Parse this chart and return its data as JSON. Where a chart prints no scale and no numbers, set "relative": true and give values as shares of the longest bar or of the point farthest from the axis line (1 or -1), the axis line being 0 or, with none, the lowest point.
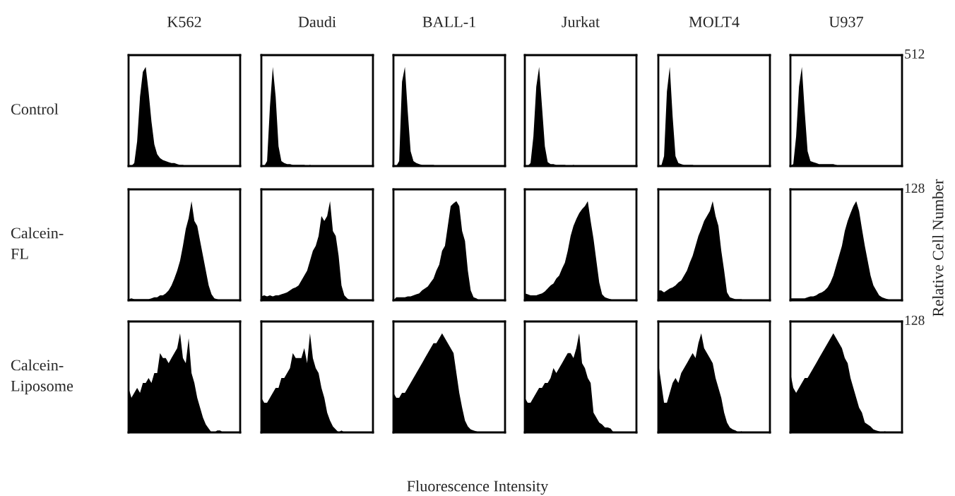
{
  "chart_data": [
    {
      "type": "area",
      "title": "K562",
      "ylabel": "Control",
      "relative": true,
      "color": "#000000",
      "categories": [
        null,
        null,
        null,
        null,
        null,
        null,
        null,
        null,
        null,
        null,
        null,
        null,
        null,
        null,
        null,
        null,
        null,
        null,
        null,
        null,
        null,
        null,
        null,
        null,
        null,
        null,
        null,
        null,
        null,
        null,
        null,
        null,
        null,
        null,
        null,
        null,
        null,
        null,
        null,
        null
      ],
      "values": [
        0,
        0,
        0.03,
        0.25,
        0.7,
        0.95,
        1.0,
        0.75,
        0.45,
        0.22,
        0.12,
        0.08,
        0.06,
        0.05,
        0.04,
        0.03,
        0.03,
        0.02,
        0.01,
        0.01,
        0,
        0,
        0,
        0,
        0,
        0,
        0,
        0,
        0,
        0,
        0,
        0,
        0,
        0,
        0,
        0,
        0,
        0,
        0,
        0
      ]
    },
    {
      "type": "area",
      "title": "Daudi",
      "relative": true,
      "color": "#000000",
      "categories": [
        null,
        null,
        null,
        null,
        null,
        null,
        null,
        null,
        null,
        null,
        null,
        null,
        null,
        null,
        null,
        null,
        null,
        null,
        null,
        null,
        null,
        null,
        null,
        null,
        null,
        null,
        null,
        null,
        null,
        null,
        null,
        null,
        null,
        null,
        null,
        null,
        null,
        null,
        null,
        null
      ],
      "values": [
        0,
        0,
        0.05,
        0.6,
        1.0,
        0.7,
        0.2,
        0.05,
        0.03,
        0.02,
        0.02,
        0.01,
        0.01,
        0.01,
        0.01,
        0.01,
        0,
        0.01,
        0,
        0,
        0,
        0,
        0,
        0,
        0,
        0,
        0,
        0,
        0,
        0,
        0,
        0,
        0,
        0,
        0,
        0,
        0,
        0,
        0,
        0
      ]
    },
    {
      "type": "area",
      "title": "BALL-1",
      "relative": true,
      "color": "#000000",
      "categories": [
        null,
        null,
        null,
        null,
        null,
        null,
        null,
        null,
        null,
        null,
        null,
        null,
        null,
        null,
        null,
        null,
        null,
        null,
        null,
        null,
        null,
        null,
        null,
        null,
        null,
        null,
        null,
        null,
        null,
        null,
        null,
        null,
        null,
        null,
        null,
        null,
        null,
        null,
        null,
        null
      ],
      "values": [
        0,
        0,
        0.05,
        0.85,
        1.0,
        0.55,
        0.15,
        0.05,
        0.03,
        0.02,
        0.01,
        0.01,
        0.01,
        0.01,
        0.01,
        0,
        0,
        0,
        0,
        0,
        0,
        0,
        0,
        0,
        0,
        0,
        0,
        0,
        0,
        0,
        0,
        0,
        0,
        0,
        0,
        0,
        0,
        0,
        0,
        0
      ]
    },
    {
      "type": "area",
      "title": "Jurkat",
      "relative": true,
      "color": "#000000",
      "categories": [
        null,
        null,
        null,
        null,
        null,
        null,
        null,
        null,
        null,
        null,
        null,
        null,
        null,
        null,
        null,
        null,
        null,
        null,
        null,
        null,
        null,
        null,
        null,
        null,
        null,
        null,
        null,
        null,
        null,
        null,
        null,
        null,
        null,
        null,
        null,
        null,
        null,
        null,
        null,
        null
      ],
      "values": [
        0,
        0,
        0.03,
        0.3,
        0.8,
        1.0,
        0.6,
        0.2,
        0.04,
        0.02,
        0.02,
        0.01,
        0.01,
        0.01,
        0.01,
        0,
        0,
        0.01,
        0,
        0,
        0,
        0,
        0,
        0,
        0,
        0,
        0,
        0,
        0,
        0,
        0,
        0,
        0,
        0,
        0,
        0,
        0,
        0,
        0,
        0
      ]
    },
    {
      "type": "area",
      "title": "MOLT4",
      "relative": true,
      "color": "#000000",
      "categories": [
        null,
        null,
        null,
        null,
        null,
        null,
        null,
        null,
        null,
        null,
        null,
        null,
        null,
        null,
        null,
        null,
        null,
        null,
        null,
        null,
        null,
        null,
        null,
        null,
        null,
        null,
        null,
        null,
        null,
        null,
        null,
        null,
        null,
        null,
        null,
        null,
        null,
        null,
        null,
        null
      ],
      "values": [
        0,
        0,
        0.1,
        0.75,
        1.0,
        0.5,
        0.1,
        0.03,
        0.02,
        0.01,
        0.01,
        0.01,
        0.01,
        0,
        0,
        0,
        0,
        0,
        0,
        0,
        0,
        0,
        0,
        0,
        0,
        0,
        0,
        0,
        0,
        0,
        0,
        0,
        0,
        0,
        0,
        0,
        0,
        0,
        0,
        0
      ]
    },
    {
      "type": "area",
      "title": "U937",
      "annotations": [
        "512"
      ],
      "relative": true,
      "color": "#000000",
      "categories": [
        null,
        null,
        null,
        null,
        null,
        null,
        null,
        null,
        null,
        null,
        null,
        null,
        null,
        null,
        null,
        null,
        null,
        null,
        null,
        null,
        null,
        null,
        null,
        null,
        null,
        null,
        null,
        null,
        null,
        null,
        null,
        null,
        null,
        null,
        null,
        null,
        null,
        null,
        null,
        null
      ],
      "values": [
        0,
        0.02,
        0.3,
        0.8,
        1.0,
        0.55,
        0.15,
        0.05,
        0.04,
        0.03,
        0.02,
        0.02,
        0.02,
        0.02,
        0.02,
        0.02,
        0.01,
        0,
        0,
        0,
        0,
        0,
        0,
        0,
        0,
        0,
        0,
        0,
        0,
        0,
        0,
        0,
        0,
        0,
        0,
        0,
        0,
        0,
        0,
        0
      ]
    },
    {
      "type": "area",
      "ylabel": "Calcein-\nFL",
      "relative": true,
      "color": "#000000",
      "categories": [
        null,
        null,
        null,
        null,
        null,
        null,
        null,
        null,
        null,
        null,
        null,
        null,
        null,
        null,
        null,
        null,
        null,
        null,
        null,
        null,
        null,
        null,
        null,
        null,
        null,
        null,
        null,
        null,
        null,
        null,
        null,
        null,
        null,
        null,
        null,
        null,
        null,
        null,
        null,
        null
      ],
      "values": [
        0.01,
        0.02,
        0.01,
        0.01,
        0.01,
        0.01,
        0.01,
        0.01,
        0.02,
        0.03,
        0.03,
        0.05,
        0.05,
        0.07,
        0.1,
        0.15,
        0.22,
        0.3,
        0.4,
        0.55,
        0.72,
        0.83,
        1.0,
        0.8,
        0.75,
        0.6,
        0.45,
        0.3,
        0.15,
        0.06,
        0.02,
        0.01,
        0,
        0,
        0,
        0,
        0,
        0,
        0,
        0
      ]
    },
    {
      "type": "area",
      "relative": true,
      "color": "#000000",
      "categories": [
        null,
        null,
        null,
        null,
        null,
        null,
        null,
        null,
        null,
        null,
        null,
        null,
        null,
        null,
        null,
        null,
        null,
        null,
        null,
        null,
        null,
        null,
        null,
        null,
        null,
        null,
        null,
        null,
        null,
        null,
        null,
        null,
        null,
        null,
        null,
        null,
        null,
        null,
        null,
        null
      ],
      "values": [
        0.04,
        0.05,
        0.04,
        0.05,
        0.04,
        0.05,
        0.05,
        0.06,
        0.07,
        0.08,
        0.1,
        0.12,
        0.13,
        0.15,
        0.2,
        0.25,
        0.3,
        0.4,
        0.5,
        0.55,
        0.65,
        0.85,
        0.8,
        0.85,
        1.0,
        0.7,
        0.65,
        0.45,
        0.15,
        0.05,
        0.02,
        0,
        0,
        0,
        0,
        0,
        0,
        0,
        0,
        0
      ]
    },
    {
      "type": "area",
      "relative": true,
      "color": "#000000",
      "categories": [
        null,
        null,
        null,
        null,
        null,
        null,
        null,
        null,
        null,
        null,
        null,
        null,
        null,
        null,
        null,
        null,
        null,
        null,
        null,
        null,
        null,
        null,
        null,
        null,
        null,
        null,
        null,
        null,
        null,
        null,
        null,
        null,
        null,
        null,
        null,
        null,
        null,
        null,
        null,
        null
      ],
      "values": [
        0,
        0.03,
        0.03,
        0.03,
        0.03,
        0.04,
        0.04,
        0.05,
        0.06,
        0.07,
        0.1,
        0.12,
        0.14,
        0.18,
        0.22,
        0.3,
        0.36,
        0.5,
        0.55,
        0.75,
        0.95,
        0.98,
        1.0,
        0.95,
        0.7,
        0.6,
        0.3,
        0.1,
        0.03,
        0.02,
        0,
        0,
        0,
        0,
        0,
        0,
        0,
        0,
        0,
        0
      ]
    },
    {
      "type": "area",
      "relative": true,
      "color": "#000000",
      "categories": [
        null,
        null,
        null,
        null,
        null,
        null,
        null,
        null,
        null,
        null,
        null,
        null,
        null,
        null,
        null,
        null,
        null,
        null,
        null,
        null,
        null,
        null,
        null,
        null,
        null,
        null,
        null,
        null,
        null,
        null,
        null,
        null,
        null,
        null,
        null,
        null,
        null,
        null,
        null,
        null
      ],
      "values": [
        0.07,
        0.06,
        0.05,
        0.05,
        0.05,
        0.06,
        0.07,
        0.09,
        0.12,
        0.15,
        0.17,
        0.22,
        0.25,
        0.32,
        0.38,
        0.5,
        0.65,
        0.75,
        0.82,
        0.88,
        0.92,
        0.95,
        1.0,
        0.8,
        0.62,
        0.4,
        0.18,
        0.06,
        0.03,
        0.02,
        0.01,
        0,
        0,
        0,
        0,
        0,
        0,
        0,
        0,
        0
      ]
    },
    {
      "type": "area",
      "relative": true,
      "color": "#000000",
      "categories": [
        null,
        null,
        null,
        null,
        null,
        null,
        null,
        null,
        null,
        null,
        null,
        null,
        null,
        null,
        null,
        null,
        null,
        null,
        null,
        null,
        null,
        null,
        null,
        null,
        null,
        null,
        null,
        null,
        null,
        null,
        null,
        null,
        null,
        null,
        null,
        null,
        null,
        null,
        null,
        null
      ],
      "values": [
        0.1,
        0.1,
        0.08,
        0.1,
        0.12,
        0.13,
        0.15,
        0.18,
        0.2,
        0.25,
        0.3,
        0.38,
        0.45,
        0.55,
        0.65,
        0.72,
        0.8,
        0.85,
        0.9,
        1.0,
        0.85,
        0.75,
        0.5,
        0.3,
        0.08,
        0.03,
        0.02,
        0.01,
        0.01,
        0.01,
        0,
        0,
        0,
        0,
        0,
        0,
        0,
        0,
        0,
        0
      ]
    },
    {
      "type": "area",
      "annotations": [
        "128"
      ],
      "y2label": "Relative Cell Number",
      "relative": true,
      "color": "#000000",
      "categories": [
        null,
        null,
        null,
        null,
        null,
        null,
        null,
        null,
        null,
        null,
        null,
        null,
        null,
        null,
        null,
        null,
        null,
        null,
        null,
        null,
        null,
        null,
        null,
        null,
        null,
        null,
        null,
        null,
        null,
        null,
        null,
        null,
        null,
        null,
        null,
        null,
        null,
        null,
        null,
        null
      ],
      "values": [
        0.02,
        0.02,
        0.02,
        0.02,
        0.02,
        0.02,
        0.03,
        0.04,
        0.04,
        0.05,
        0.07,
        0.08,
        0.1,
        0.13,
        0.18,
        0.25,
        0.35,
        0.45,
        0.55,
        0.7,
        0.8,
        0.88,
        0.95,
        1.0,
        0.9,
        0.72,
        0.55,
        0.4,
        0.25,
        0.15,
        0.1,
        0.05,
        0.03,
        0.02,
        0.01,
        0,
        0,
        0,
        0,
        0
      ]
    },
    {
      "type": "area",
      "ylabel": "Calcein-\nLiposome",
      "relative": true,
      "color": "#000000",
      "categories": [
        null,
        null,
        null,
        null,
        null,
        null,
        null,
        null,
        null,
        null,
        null,
        null,
        null,
        null,
        null,
        null,
        null,
        null,
        null,
        null,
        null,
        null,
        null,
        null,
        null,
        null,
        null,
        null,
        null,
        null,
        null,
        null,
        null,
        null,
        null,
        null,
        null,
        null,
        null,
        null
      ],
      "values": [
        0.45,
        0.35,
        0.4,
        0.45,
        0.4,
        0.5,
        0.5,
        0.55,
        0.5,
        0.6,
        0.6,
        0.8,
        0.75,
        0.75,
        0.7,
        0.75,
        0.8,
        0.85,
        1.0,
        0.75,
        0.7,
        0.95,
        0.6,
        0.5,
        0.35,
        0.25,
        0.15,
        0.08,
        0.04,
        0,
        0,
        0.02,
        0.02,
        0,
        0,
        0,
        0,
        0,
        0,
        0
      ]
    },
    {
      "type": "area",
      "relative": true,
      "color": "#000000",
      "categories": [
        null,
        null,
        null,
        null,
        null,
        null,
        null,
        null,
        null,
        null,
        null,
        null,
        null,
        null,
        null,
        null,
        null,
        null,
        null,
        null,
        null,
        null,
        null,
        null,
        null,
        null,
        null,
        null,
        null,
        null,
        null,
        null,
        null,
        null,
        null,
        null,
        null,
        null,
        null,
        null
      ],
      "values": [
        0.35,
        0.3,
        0.3,
        0.35,
        0.4,
        0.45,
        0.45,
        0.55,
        0.55,
        0.6,
        0.65,
        0.8,
        0.75,
        0.75,
        0.75,
        0.85,
        0.7,
        1.0,
        0.75,
        0.65,
        0.6,
        0.45,
        0.35,
        0.2,
        0.12,
        0.06,
        0.03,
        0,
        0.02,
        0,
        0,
        0,
        0,
        0,
        0,
        0,
        0,
        0,
        0,
        0
      ]
    },
    {
      "type": "area",
      "relative": true,
      "color": "#000000",
      "categories": [
        null,
        null,
        null,
        null,
        null,
        null,
        null,
        null,
        null,
        null,
        null,
        null,
        null,
        null,
        null,
        null,
        null,
        null,
        null,
        null,
        null,
        null,
        null,
        null,
        null,
        null,
        null,
        null,
        null,
        null,
        null,
        null,
        null,
        null,
        null,
        null,
        null,
        null,
        null,
        null
      ],
      "values": [
        0.4,
        0.35,
        0.35,
        0.4,
        0.4,
        0.45,
        0.5,
        0.55,
        0.6,
        0.65,
        0.7,
        0.75,
        0.8,
        0.85,
        0.9,
        0.9,
        0.95,
        1.0,
        0.95,
        0.9,
        0.85,
        0.8,
        0.6,
        0.4,
        0.25,
        0.12,
        0.06,
        0.03,
        0.02,
        0.01,
        0,
        0,
        0,
        0,
        0,
        0,
        0,
        0,
        0,
        0
      ]
    },
    {
      "type": "area",
      "relative": true,
      "color": "#000000",
      "categories": [
        null,
        null,
        null,
        null,
        null,
        null,
        null,
        null,
        null,
        null,
        null,
        null,
        null,
        null,
        null,
        null,
        null,
        null,
        null,
        null,
        null,
        null,
        null,
        null,
        null,
        null,
        null,
        null,
        null,
        null,
        null,
        null,
        null,
        null,
        null,
        null,
        null,
        null,
        null,
        null
      ],
      "values": [
        0.35,
        0.3,
        0.3,
        0.35,
        0.4,
        0.45,
        0.45,
        0.5,
        0.5,
        0.55,
        0.65,
        0.6,
        0.65,
        0.7,
        0.75,
        0.8,
        0.8,
        0.75,
        0.85,
        1.0,
        0.7,
        0.65,
        0.55,
        0.5,
        0.2,
        0.15,
        0.1,
        0.08,
        0.05,
        0.05,
        0.04,
        0,
        0,
        0,
        0,
        0,
        0,
        0,
        0,
        0
      ]
    },
    {
      "type": "area",
      "relative": true,
      "color": "#000000",
      "categories": [
        null,
        null,
        null,
        null,
        null,
        null,
        null,
        null,
        null,
        null,
        null,
        null,
        null,
        null,
        null,
        null,
        null,
        null,
        null,
        null,
        null,
        null,
        null,
        null,
        null,
        null,
        null,
        null,
        null,
        null,
        null,
        null,
        null,
        null,
        null,
        null,
        null,
        null,
        null,
        null
      ],
      "values": [
        0.7,
        0.5,
        0.3,
        0.3,
        0.4,
        0.5,
        0.55,
        0.5,
        0.6,
        0.65,
        0.7,
        0.75,
        0.8,
        0.75,
        0.9,
        1.0,
        0.85,
        0.8,
        0.75,
        0.7,
        0.55,
        0.45,
        0.35,
        0.2,
        0.1,
        0.05,
        0.03,
        0.02,
        0,
        0.01,
        0,
        0,
        0,
        0,
        0,
        0,
        0,
        0,
        0,
        0
      ]
    },
    {
      "type": "area",
      "annotations": [
        "128",
        "Fluorescence Intensity"
      ],
      "relative": true,
      "color": "#000000",
      "categories": [
        null,
        null,
        null,
        null,
        null,
        null,
        null,
        null,
        null,
        null,
        null,
        null,
        null,
        null,
        null,
        null,
        null,
        null,
        null,
        null,
        null,
        null,
        null,
        null,
        null,
        null,
        null,
        null,
        null,
        null,
        null,
        null,
        null,
        null,
        null,
        null,
        null,
        null,
        null,
        null
      ],
      "values": [
        0.6,
        0.45,
        0.4,
        0.45,
        0.5,
        0.55,
        0.55,
        0.6,
        0.65,
        0.7,
        0.75,
        0.8,
        0.85,
        0.9,
        0.95,
        1.0,
        0.95,
        0.9,
        0.85,
        0.75,
        0.7,
        0.55,
        0.45,
        0.35,
        0.25,
        0.2,
        0.1,
        0.08,
        0.06,
        0.03,
        0.02,
        0.01,
        0,
        0.01,
        0,
        0,
        0,
        0,
        0,
        0
      ]
    }
  ]
}
